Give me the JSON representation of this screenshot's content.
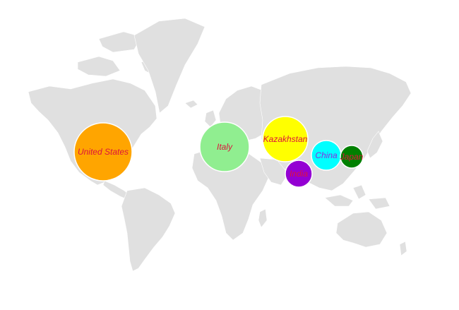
{
  "map": {
    "bubbles": [
      {
        "country": "United States",
        "color": "#FFA500",
        "label_color": "#DC143C"
      },
      {
        "country": "Italy",
        "color": "#90EE90",
        "label_color": "#DC143C"
      },
      {
        "country": "Kazakhstan",
        "color": "#FFFF00",
        "label_color": "#DC143C"
      },
      {
        "country": "China",
        "color": "#00FFFF",
        "label_color": "#8A2BE2"
      },
      {
        "country": "Japan",
        "color": "#008000",
        "label_color": "#DC143C"
      },
      {
        "country": "India",
        "color": "#9400D3",
        "label_color": "#DC143C"
      }
    ],
    "land_color": "#E0E0E0"
  }
}
